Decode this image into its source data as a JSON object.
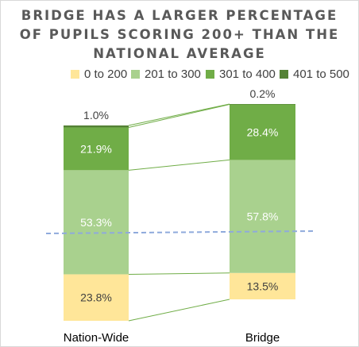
{
  "chart_data": {
    "type": "bar",
    "stacked": true,
    "title": [
      "BRIDGE HAS A LARGER PERCENTAGE",
      "OF PUPILS SCORING 200+ THAN THE",
      "NATIONAL AVERAGE"
    ],
    "categories": [
      "Nation-Wide",
      "Bridge"
    ],
    "series": [
      {
        "name": "0 to 200",
        "values": [
          23.8,
          13.5
        ],
        "labels": [
          "23.8%",
          "13.5%"
        ],
        "color": "#ffe699"
      },
      {
        "name": "201 to 300",
        "values": [
          53.3,
          57.8
        ],
        "labels": [
          "53.3%",
          "57.8%"
        ],
        "color": "#a9d18e"
      },
      {
        "name": "301 to 400",
        "values": [
          21.9,
          28.4
        ],
        "labels": [
          "21.9%",
          "28.4%"
        ],
        "color": "#70ad47"
      },
      {
        "name": "401 to 500",
        "values": [
          1.0,
          0.2
        ],
        "labels": [
          "1.0%",
          "0.2%"
        ],
        "color": "#548235"
      }
    ],
    "legend_position": "top",
    "reference_line": {
      "style": "dashed",
      "color": "#8faadc"
    },
    "connector_lines": true,
    "grid": false
  }
}
